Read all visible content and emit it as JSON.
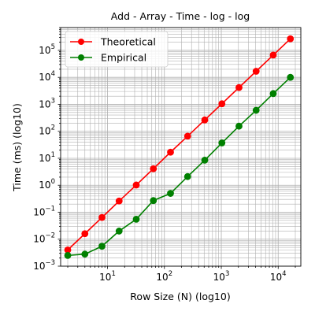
{
  "chart_data": {
    "type": "line",
    "title": "Add - Array - Time - log - log",
    "xlabel": "Row Size (N) (log10)",
    "ylabel": "Time (ms) (log10)",
    "xscale": "log",
    "yscale": "log",
    "xlim": [
      1.5,
      25000
    ],
    "ylim": [
      0.001,
      700000
    ],
    "grid": "major-and-minor",
    "legend": "top-left",
    "x_ticks": [
      {
        "value": 10,
        "base": "10",
        "exp": "1"
      },
      {
        "value": 100,
        "base": "10",
        "exp": "2"
      },
      {
        "value": 1000,
        "base": "10",
        "exp": "3"
      },
      {
        "value": 10000,
        "base": "10",
        "exp": "4"
      }
    ],
    "y_ticks": [
      {
        "value": 0.001,
        "base": "10",
        "exp": "−3"
      },
      {
        "value": 0.01,
        "base": "10",
        "exp": "−2"
      },
      {
        "value": 0.1,
        "base": "10",
        "exp": "−1"
      },
      {
        "value": 1,
        "base": "10",
        "exp": "0"
      },
      {
        "value": 10,
        "base": "10",
        "exp": "1"
      },
      {
        "value": 100,
        "base": "10",
        "exp": "2"
      },
      {
        "value": 1000,
        "base": "10",
        "exp": "3"
      },
      {
        "value": 10000,
        "base": "10",
        "exp": "4"
      },
      {
        "value": 100000,
        "base": "10",
        "exp": "5"
      }
    ],
    "x": [
      2,
      4,
      8,
      16,
      32,
      64,
      128,
      256,
      512,
      1024,
      2048,
      4096,
      8192,
      16384
    ],
    "series": [
      {
        "name": "Theoretical",
        "color": "#ff0000",
        "values": [
          0.004,
          0.016,
          0.064,
          0.26,
          1.02,
          4.1,
          16.8,
          66,
          263,
          1050,
          4200,
          16800,
          67000,
          268000
        ]
      },
      {
        "name": "Empirical",
        "color": "#008000",
        "values": [
          0.0025,
          0.0028,
          0.0055,
          0.02,
          0.055,
          0.27,
          0.5,
          2.1,
          8.5,
          37,
          155,
          600,
          2500,
          10000
        ]
      }
    ]
  }
}
